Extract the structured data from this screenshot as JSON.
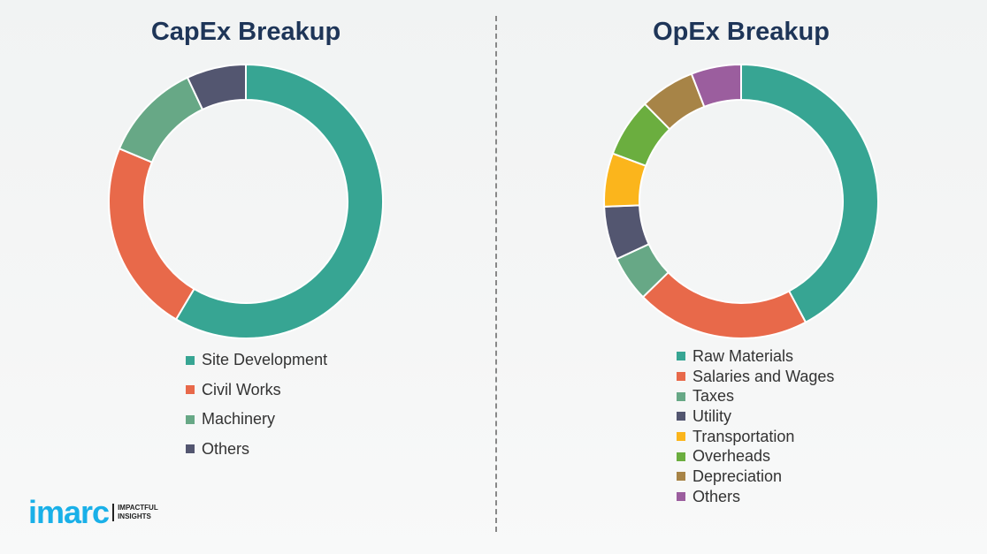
{
  "chart_data": [
    {
      "type": "pie",
      "title": "CapEx Breakup",
      "categories": [
        "Site Development",
        "Civil Works",
        "Machinery",
        "Others"
      ],
      "values": [
        58.5,
        22.8,
        11.7,
        7.0
      ],
      "colors": [
        "#37a593",
        "#e8694a",
        "#67a886",
        "#535670"
      ],
      "legend": "bottom"
    },
    {
      "type": "pie",
      "title": "OpEx Breakup",
      "categories": [
        "Raw Materials",
        "Salaries and Wages",
        "Taxes",
        "Utility",
        "Transportation",
        "Overheads",
        "Depreciation",
        "Others"
      ],
      "values": [
        42.2,
        20.5,
        5.4,
        6.3,
        6.3,
        6.9,
        6.5,
        5.9
      ],
      "colors": [
        "#37a593",
        "#e8694a",
        "#67a886",
        "#535670",
        "#fbb51c",
        "#6bae3f",
        "#a78447",
        "#9b5e9e"
      ],
      "legend": "bottom"
    }
  ],
  "logo": {
    "word": "imarc",
    "tagline1": "IMPACTFUL",
    "tagline2": "INSIGHTS"
  }
}
